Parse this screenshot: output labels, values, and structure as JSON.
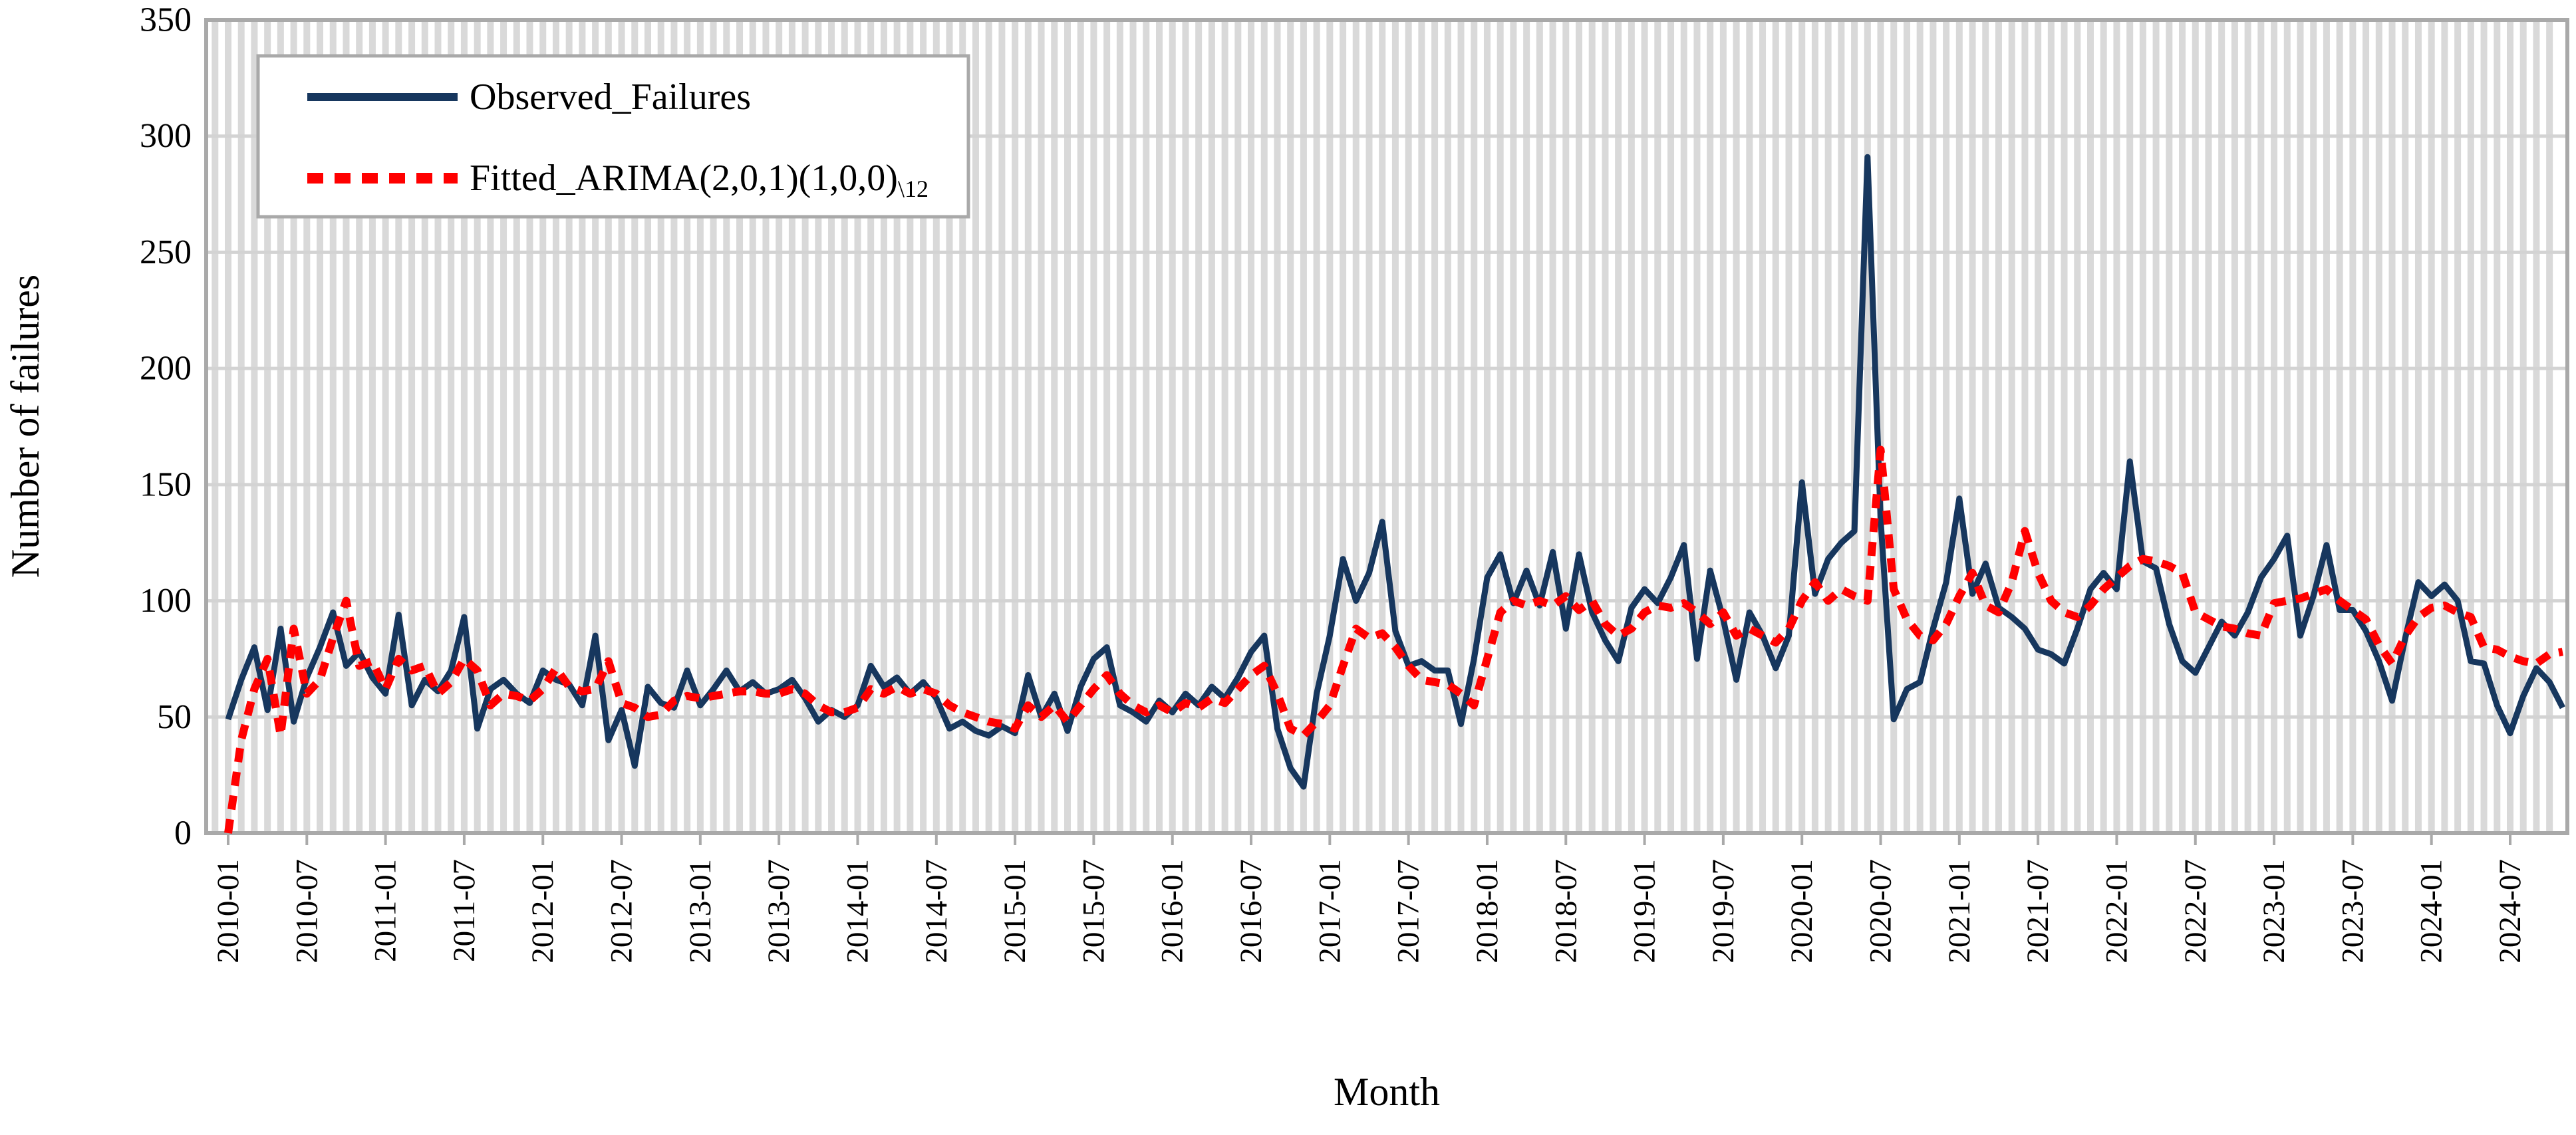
{
  "figure": {
    "y_axis_title": "Number of failures",
    "x_axis_title": "Month",
    "colors": {
      "observed": "#17375E",
      "fitted": "#FF0000",
      "stripe_gridline": "#D9D9D9",
      "horizontal_gridline": "#D3D3D3",
      "plot_border": "#A9A9A9",
      "background": "#FFFFFF",
      "text": "#000000"
    }
  },
  "legend": {
    "position": "top-left-inside",
    "items": [
      {
        "label": "Observed_Failures",
        "label_sub": "",
        "line_style": "solid",
        "color": "#17375E"
      },
      {
        "label": "Fitted_ARIMA(2,0,1)(1,0,0)",
        "label_sub": "\\12",
        "line_style": "dashed",
        "color": "#FF0000"
      }
    ]
  },
  "chart_data": {
    "type": "line",
    "title": "",
    "xlabel": "Month",
    "ylabel": "Number of failures",
    "ylim": [
      0,
      350
    ],
    "y_ticks": [
      0,
      50,
      100,
      150,
      200,
      250,
      300,
      350
    ],
    "x_monthly_start": "2010-01",
    "x_monthly_end": "2024-11",
    "x_tick_interval_months": 6,
    "x_tick_labels": [
      "2010-01",
      "2010-07",
      "2011-01",
      "2011-07",
      "2012-01",
      "2012-07",
      "2013-01",
      "2013-07",
      "2014-01",
      "2014-07",
      "2015-01",
      "2015-07",
      "2016-01",
      "2016-07",
      "2017-01",
      "2017-07",
      "2018-01",
      "2018-07",
      "2019-01",
      "2019-07",
      "2020-01",
      "2020-07",
      "2021-01",
      "2021-07",
      "2022-01",
      "2022-07",
      "2023-01",
      "2023-07",
      "2024-01",
      "2024-07"
    ],
    "grid": "vertical stripe per month + horizontal line every 50",
    "legend_position": "top-left inside plot",
    "series": [
      {
        "name": "Observed_Failures",
        "color": "#17375E",
        "line_style": "solid",
        "values": [
          49,
          66,
          80,
          53,
          88,
          48,
          67,
          80,
          95,
          72,
          78,
          67,
          60,
          94,
          55,
          66,
          61,
          70,
          93,
          45,
          62,
          66,
          60,
          56,
          70,
          66,
          64,
          55,
          85,
          40,
          53,
          29,
          63,
          56,
          54,
          70,
          55,
          62,
          70,
          61,
          65,
          60,
          62,
          66,
          58,
          48,
          53,
          50,
          55,
          72,
          63,
          67,
          60,
          65,
          58,
          45,
          48,
          44,
          42,
          46,
          43,
          68,
          50,
          60,
          44,
          63,
          75,
          80,
          55,
          52,
          48,
          57,
          52,
          60,
          55,
          63,
          58,
          67,
          78,
          85,
          45,
          28,
          20,
          60,
          85,
          118,
          100,
          112,
          134,
          87,
          72,
          74,
          70,
          70,
          47,
          75,
          110,
          120,
          99,
          113,
          98,
          121,
          88,
          120,
          95,
          83,
          74,
          97,
          105,
          99,
          110,
          124,
          75,
          113,
          92,
          66,
          95,
          85,
          71,
          85,
          151,
          103,
          118,
          125,
          130,
          291,
          135,
          49,
          62,
          65,
          88,
          108,
          144,
          103,
          116,
          97,
          93,
          88,
          79,
          77,
          73,
          88,
          105,
          112,
          105,
          160,
          117,
          114,
          90,
          74,
          69,
          80,
          91,
          85,
          95,
          110,
          118,
          128,
          85,
          102,
          124,
          96,
          96,
          87,
          74,
          57,
          84,
          108,
          102,
          107,
          100,
          74,
          73,
          55,
          43,
          59,
          71,
          65,
          54
        ]
      },
      {
        "name": "Fitted_ARIMA(2,0,1)(1,0,0)\\12",
        "color": "#FF0000",
        "line_style": "dashed",
        "values": [
          0,
          40,
          62,
          75,
          42,
          88,
          60,
          66,
          84,
          100,
          72,
          74,
          62,
          75,
          70,
          72,
          60,
          65,
          75,
          70,
          55,
          60,
          59,
          57,
          62,
          71,
          63,
          61,
          62,
          74,
          56,
          54,
          50,
          51,
          57,
          59,
          58,
          59,
          60,
          61,
          61,
          60,
          60,
          62,
          60,
          55,
          52,
          52,
          54,
          62,
          60,
          63,
          60,
          62,
          60,
          55,
          52,
          50,
          48,
          47,
          45,
          55,
          50,
          55,
          48,
          55,
          62,
          68,
          60,
          55,
          52,
          55,
          52,
          56,
          54,
          58,
          56,
          62,
          68,
          72,
          60,
          45,
          42,
          48,
          55,
          72,
          88,
          84,
          86,
          80,
          72,
          66,
          65,
          64,
          60,
          55,
          75,
          95,
          100,
          98,
          100,
          98,
          102,
          96,
          100,
          90,
          85,
          88,
          95,
          98,
          97,
          99,
          95,
          90,
          95,
          85,
          88,
          85,
          82,
          88,
          100,
          108,
          100,
          105,
          102,
          100,
          165,
          105,
          92,
          85,
          83,
          90,
          102,
          112,
          98,
          95,
          108,
          130,
          112,
          100,
          95,
          93,
          98,
          105,
          110,
          115,
          118,
          117,
          115,
          112,
          95,
          92,
          89,
          88,
          86,
          85,
          99,
          100,
          101,
          103,
          105,
          100,
          96,
          92,
          81,
          73,
          85,
          93,
          97,
          98,
          95,
          93,
          80,
          79,
          76,
          74,
          73,
          77,
          78
        ]
      }
    ]
  }
}
